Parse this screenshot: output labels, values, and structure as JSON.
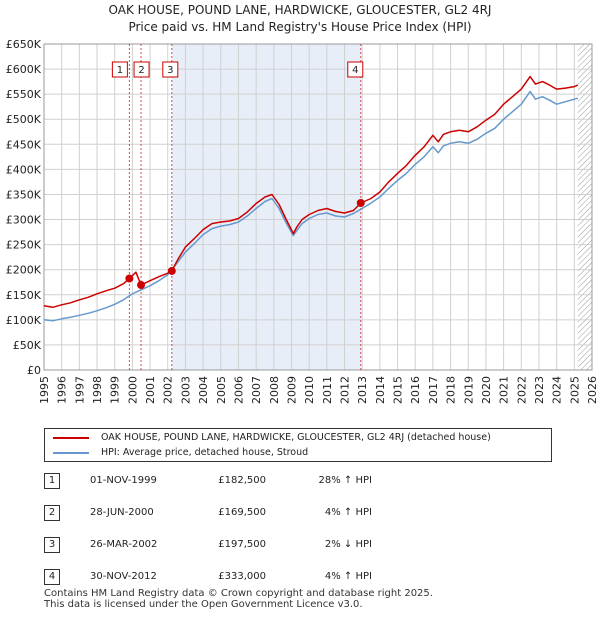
{
  "title_line1": "OAK HOUSE, POUND LANE, HARDWICKE, GLOUCESTER, GL2 4RJ",
  "title_line2": "Price paid vs. HM Land Registry's House Price Index (HPI)",
  "legend": {
    "series1": "OAK HOUSE, POUND LANE, HARDWICKE, GLOUCESTER, GL2 4RJ (detached house)",
    "series2": "HPI: Average price, detached house, Stroud"
  },
  "colors": {
    "price": "#cc0000",
    "hpi": "#6699cc",
    "band": "#e8eef8",
    "grid": "#d0d0d0"
  },
  "transactions": [
    {
      "num": "1",
      "date": "01-NOV-1999",
      "price": "£182,500",
      "hpi": "28% ↑ HPI"
    },
    {
      "num": "2",
      "date": "28-JUN-2000",
      "price": "£169,500",
      "hpi": "4% ↑ HPI"
    },
    {
      "num": "3",
      "date": "26-MAR-2002",
      "price": "£197,500",
      "hpi": "2% ↓ HPI"
    },
    {
      "num": "4",
      "date": "30-NOV-2012",
      "price": "£333,000",
      "hpi": "4% ↑ HPI"
    }
  ],
  "footer": {
    "line1": "Contains HM Land Registry data © Crown copyright and database right 2025.",
    "line2": "This data is licensed under the Open Government Licence v3.0."
  },
  "chart_data": {
    "type": "line",
    "title": "Price paid vs. HM Land Registry's House Price Index (HPI)",
    "xlabel": "",
    "ylabel": "",
    "xlim": [
      1995,
      2026
    ],
    "ylim": [
      0,
      650000
    ],
    "y_ticks": [
      0,
      50000,
      100000,
      150000,
      200000,
      250000,
      300000,
      350000,
      400000,
      450000,
      500000,
      550000,
      600000,
      650000
    ],
    "y_tick_labels": [
      "£0",
      "£50K",
      "£100K",
      "£150K",
      "£200K",
      "£250K",
      "£300K",
      "£350K",
      "£400K",
      "£450K",
      "£500K",
      "£550K",
      "£600K",
      "£650K"
    ],
    "x_ticks": [
      1995,
      1996,
      1997,
      1998,
      1999,
      2000,
      2001,
      2002,
      2003,
      2004,
      2005,
      2006,
      2007,
      2008,
      2009,
      2010,
      2011,
      2012,
      2013,
      2014,
      2015,
      2016,
      2017,
      2018,
      2019,
      2020,
      2021,
      2022,
      2023,
      2024,
      2025,
      2026
    ],
    "x_tick_labels": [
      "1995",
      "1996",
      "1997",
      "1998",
      "1999",
      "2000",
      "2001",
      "2002",
      "2003",
      "2004",
      "2005",
      "2006",
      "2007",
      "2008",
      "2009",
      "2010",
      "2011",
      "2012",
      "2013",
      "2014",
      "2015",
      "2016",
      "2017",
      "2018",
      "2019",
      "2020",
      "2021",
      "2022",
      "2023",
      "2024",
      "2025",
      "2026"
    ],
    "grid": true,
    "legend_position": "below-chart",
    "shaded_range": [
      2002.23,
      2012.92
    ],
    "future_hatch_from": 2025.2,
    "series": [
      {
        "name": "OAK HOUSE, POUND LANE, HARDWICKE, GLOUCESTER, GL2 4RJ (detached house)",
        "color": "#cc0000",
        "x": [
          1995.0,
          1995.5,
          1996.0,
          1996.5,
          1997.0,
          1997.5,
          1998.0,
          1998.5,
          1999.0,
          1999.5,
          1999.83,
          2000.2,
          2000.49,
          2001.0,
          2001.5,
          2002.0,
          2002.23,
          2002.6,
          2003.0,
          2003.5,
          2004.0,
          2004.5,
          2005.0,
          2005.5,
          2006.0,
          2006.5,
          2007.0,
          2007.5,
          2007.9,
          2008.3,
          2008.7,
          2009.1,
          2009.3,
          2009.6,
          2010.0,
          2010.5,
          2011.0,
          2011.5,
          2012.0,
          2012.5,
          2012.92,
          2013.5,
          2014.0,
          2014.5,
          2015.0,
          2015.5,
          2016.0,
          2016.5,
          2017.0,
          2017.3,
          2017.6,
          2018.0,
          2018.5,
          2019.0,
          2019.5,
          2020.0,
          2020.5,
          2021.0,
          2021.5,
          2022.0,
          2022.5,
          2022.8,
          2023.2,
          2023.6,
          2024.0,
          2024.5,
          2025.0,
          2025.2
        ],
        "values": [
          128000,
          125000,
          130000,
          134000,
          140000,
          145000,
          152000,
          158000,
          163000,
          172000,
          182500,
          195000,
          169500,
          178000,
          186000,
          193000,
          197500,
          222000,
          245000,
          262000,
          280000,
          292000,
          295000,
          297000,
          302000,
          315000,
          332000,
          345000,
          350000,
          330000,
          300000,
          272000,
          285000,
          300000,
          310000,
          318000,
          322000,
          316000,
          313000,
          318000,
          333000,
          342000,
          355000,
          375000,
          392000,
          408000,
          428000,
          445000,
          468000,
          455000,
          470000,
          475000,
          478000,
          475000,
          485000,
          498000,
          510000,
          530000,
          545000,
          560000,
          585000,
          570000,
          575000,
          568000,
          560000,
          562000,
          565000,
          568000
        ]
      },
      {
        "name": "HPI: Average price, detached house, Stroud",
        "color": "#6699cc",
        "x": [
          1995.0,
          1995.5,
          1996.0,
          1996.5,
          1997.0,
          1997.5,
          1998.0,
          1998.5,
          1999.0,
          1999.5,
          2000.0,
          2000.5,
          2001.0,
          2001.5,
          2002.0,
          2002.5,
          2003.0,
          2003.5,
          2004.0,
          2004.5,
          2005.0,
          2005.5,
          2006.0,
          2006.5,
          2007.0,
          2007.5,
          2007.9,
          2008.3,
          2008.7,
          2009.1,
          2009.3,
          2009.6,
          2010.0,
          2010.5,
          2011.0,
          2011.5,
          2012.0,
          2012.5,
          2013.0,
          2013.5,
          2014.0,
          2014.5,
          2015.0,
          2015.5,
          2016.0,
          2016.5,
          2017.0,
          2017.3,
          2017.6,
          2018.0,
          2018.5,
          2019.0,
          2019.5,
          2020.0,
          2020.5,
          2021.0,
          2021.5,
          2022.0,
          2022.5,
          2022.8,
          2023.2,
          2023.6,
          2024.0,
          2024.5,
          2025.0,
          2025.2
        ],
        "values": [
          100000,
          98000,
          102000,
          105000,
          109000,
          113000,
          118000,
          124000,
          131000,
          140000,
          152000,
          160000,
          168000,
          178000,
          190000,
          212000,
          235000,
          252000,
          270000,
          282000,
          287000,
          290000,
          295000,
          307000,
          322000,
          336000,
          342000,
          322000,
          293000,
          268000,
          278000,
          292000,
          302000,
          310000,
          313000,
          307000,
          305000,
          312000,
          322000,
          333000,
          345000,
          362000,
          378000,
          392000,
          410000,
          425000,
          445000,
          433000,
          447000,
          452000,
          455000,
          452000,
          460000,
          472000,
          482000,
          500000,
          515000,
          530000,
          555000,
          540000,
          545000,
          538000,
          530000,
          535000,
          540000,
          542000
        ]
      }
    ],
    "markers": [
      {
        "label": "1",
        "x": 1999.83,
        "y": 182500
      },
      {
        "label": "2",
        "x": 2000.49,
        "y": 169500
      },
      {
        "label": "3",
        "x": 2002.23,
        "y": 197500
      },
      {
        "label": "4",
        "x": 2012.92,
        "y": 333000
      }
    ]
  }
}
